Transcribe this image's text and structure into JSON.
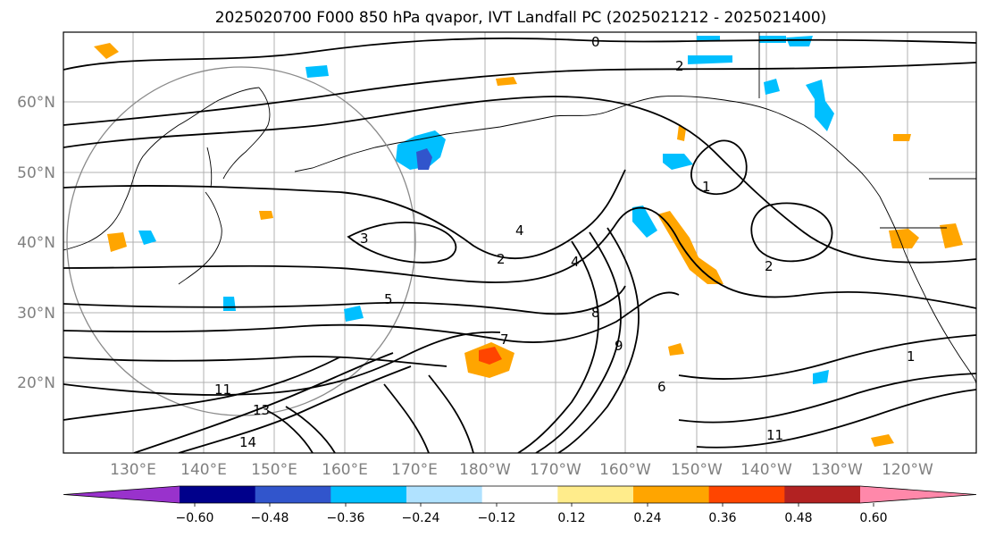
{
  "title": "2025020700 F000 850 hPa qvapor, IVT Landfall PC (2025021212 - 2025021400)",
  "map": {
    "lat_labels": [
      "60°N",
      "50°N",
      "40°N",
      "30°N",
      "20°N"
    ],
    "lon_labels": [
      "130°E",
      "140°E",
      "150°E",
      "160°E",
      "170°E",
      "180°W",
      "170°W",
      "160°W",
      "150°W",
      "140°W",
      "130°W",
      "120°W"
    ],
    "contour_labels": [
      "0",
      "2",
      "1",
      "2",
      "4",
      "3",
      "5",
      "4",
      "2",
      "8",
      "9",
      "6",
      "1",
      "11",
      "13",
      "14",
      "11",
      "7"
    ],
    "colors": {
      "land_outline": "#000000",
      "contour": "#000000",
      "grid": "#b0b0b0",
      "range_circle": "#8a8a8a"
    }
  },
  "colorbar": {
    "ticks": [
      "−0.60",
      "−0.48",
      "−0.36",
      "−0.24",
      "−0.12",
      "0.12",
      "0.24",
      "0.36",
      "0.48",
      "0.60"
    ],
    "colors": [
      "#9932cc",
      "#00008b",
      "#3155cc",
      "#00bfff",
      "#b0e2ff",
      "#ffffff",
      "#ffec8b",
      "#ffa500",
      "#ff4500",
      "#b22222",
      "#ff88aa"
    ]
  }
}
